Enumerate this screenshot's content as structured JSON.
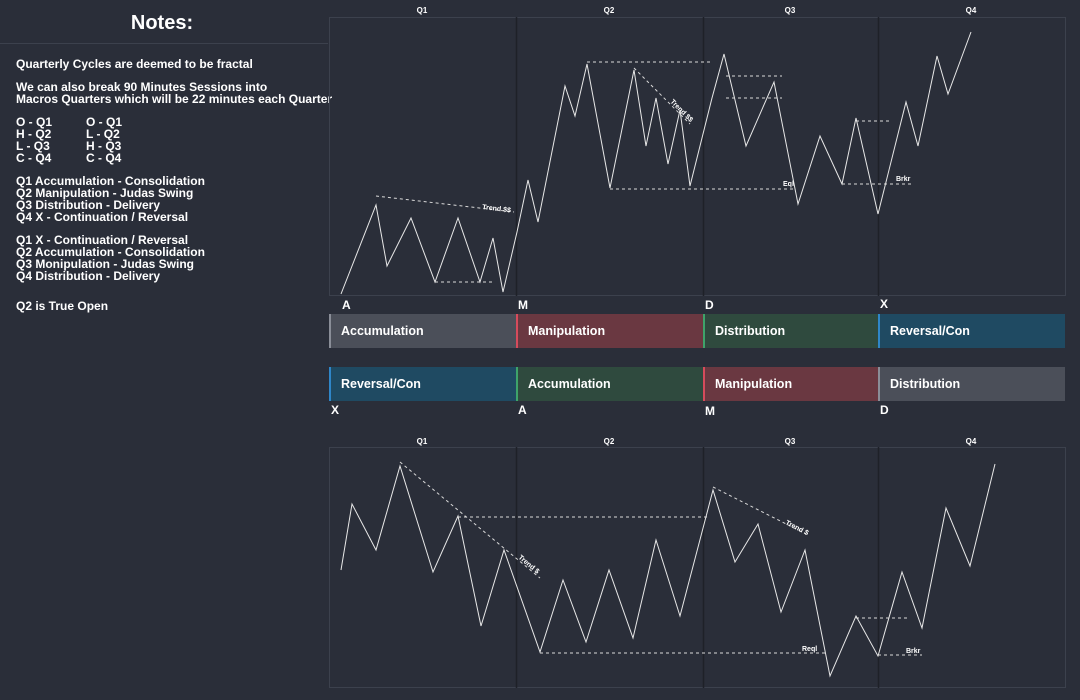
{
  "notes": {
    "title": "Notes:",
    "line_fractal": "Quarterly Cycles are deemed to be fractal",
    "line_macro_1": "We can also break 90 Minutes Sessions into",
    "line_macro_2": "Macros Quarters which will be 22 minutes each Quarter",
    "ohlc_left": [
      "O - Q1",
      "H - Q2",
      "L - Q3",
      "C - Q4"
    ],
    "ohlc_right": [
      "O - Q1",
      "L - Q2",
      "H - Q3",
      "C - Q4"
    ],
    "amdx": [
      "Q1 Accumulation - Consolidation",
      "Q2 Manipulation - Judas Swing",
      "Q3 Distribution - Delivery",
      "Q4 X - Continuation / Reversal"
    ],
    "xamd": [
      "Q1 X - Continuation / Reversal",
      "Q2 Accumulation - Consolidation",
      "Q3 Monipulation - Judas Swing",
      "Q4 Distribution - Delivery"
    ],
    "true_open": "Q2 is True Open"
  },
  "top_chart": {
    "quarters": [
      "Q1",
      "Q2",
      "Q3",
      "Q4"
    ],
    "annotations": {
      "trend": "Trend $$",
      "trend2": "Trend $$",
      "eql": "Eql",
      "brkr": "Brkr"
    },
    "letters": [
      "A",
      "M",
      "D",
      "X"
    ]
  },
  "phase_row_1": {
    "phases": [
      "Accumulation",
      "Manipulation",
      "Distribution",
      "Reversal/Con"
    ]
  },
  "phase_row_2": {
    "phases": [
      "Reversal/Con",
      "Accumulation",
      "Manipulation",
      "Distribution"
    ],
    "letters": [
      "X",
      "A",
      "M",
      "D"
    ]
  },
  "bottom_chart": {
    "quarters": [
      "Q1",
      "Q2",
      "Q3",
      "Q4"
    ],
    "annotations": {
      "trend": "Trend $",
      "trend2": "Trend $",
      "reql": "Reql",
      "brkr": "Brkr"
    }
  },
  "colors": {
    "background": "#2a2e39",
    "grid": "#3c414d",
    "accumulation": "#4b4f59",
    "manipulation": "#6a3841",
    "distribution": "#2f4a3e",
    "reversal": "#1f4a62"
  }
}
